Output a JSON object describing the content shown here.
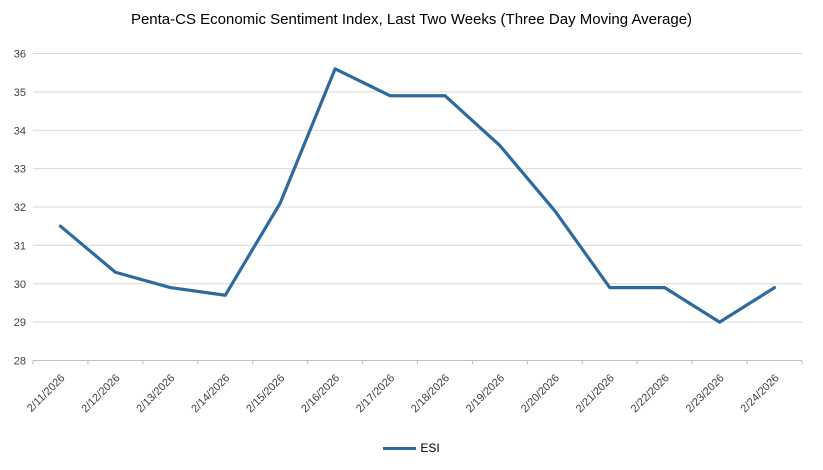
{
  "chart_data": {
    "type": "line",
    "title": "Penta-CS Economic Sentiment Index, Last Two Weeks (Three Day Moving Average)",
    "categories": [
      "2/11/2026",
      "2/12/2026",
      "2/13/2026",
      "2/14/2026",
      "2/15/2026",
      "2/16/2026",
      "2/17/2026",
      "2/18/2026",
      "2/19/2026",
      "2/20/2026",
      "2/21/2026",
      "2/22/2026",
      "2/23/2026",
      "2/24/2026"
    ],
    "series": [
      {
        "name": "ESI",
        "values": [
          31.5,
          30.3,
          29.9,
          29.7,
          32.1,
          35.6,
          34.9,
          34.9,
          33.6,
          31.9,
          29.9,
          29.9,
          29.0,
          29.9
        ],
        "color": "#2f6a9c"
      }
    ],
    "xlabel": "",
    "ylabel": "",
    "ylim": [
      28,
      36
    ],
    "y_ticks": [
      28,
      29,
      30,
      31,
      32,
      33,
      34,
      35,
      36
    ],
    "grid": "horizontal",
    "legend_position": "bottom"
  },
  "colors": {
    "line": "#2f6a9c",
    "gridline": "#d9d9d9",
    "axis": "#bfbfbf",
    "tick_label": "#404040",
    "title": "#000000",
    "background": "#ffffff"
  }
}
